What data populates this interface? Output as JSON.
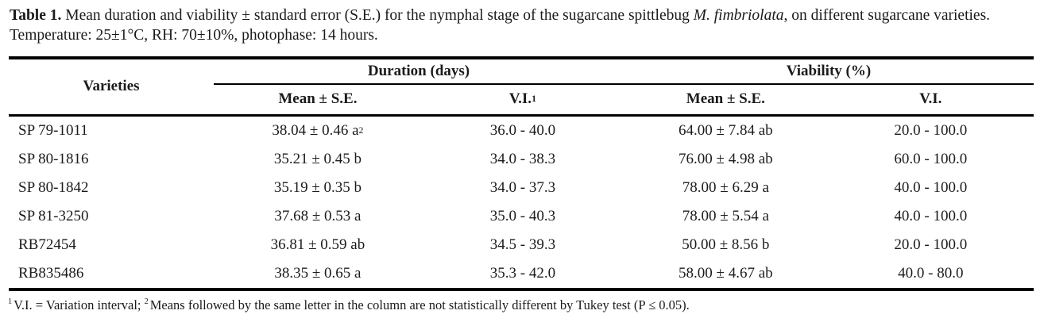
{
  "page": {
    "background_color": "#ffffff",
    "text_color": "#1b1b1b",
    "rule_color": "#000000"
  },
  "caption": {
    "label": "Table 1.",
    "text_before_species": " Mean duration and viability ± standard error (S.E.) for the nymphal stage of the sugarcane spittlebug ",
    "species": "M. fimbriolata",
    "text_after_species": ", on different sugarcane varieties. Temperature: 25±1°C, RH: 70±10%, photophase: 14 hours."
  },
  "table": {
    "header": {
      "varieties": "Varieties",
      "duration_group": "Duration (days)",
      "viability_group": "Viability (%)",
      "dur_mean": "Mean ± S.E.",
      "dur_vi": "V.I.",
      "dur_vi_sup": "1",
      "via_mean": "Mean ± S.E.",
      "via_vi": "V.I."
    },
    "rows": [
      {
        "variety": "SP 79-1011",
        "dur_mean": "38.04 ± 0.46 a",
        "dur_mean_sup": "2",
        "dur_vi": "36.0 - 40.0",
        "via_mean": "64.00 ± 7.84 ab",
        "via_vi": "20.0 - 100.0"
      },
      {
        "variety": "SP 80-1816",
        "dur_mean": "35.21 ± 0.45 b",
        "dur_vi": "34.0 - 38.3",
        "via_mean": "76.00 ± 4.98 ab",
        "via_vi": "60.0 - 100.0"
      },
      {
        "variety": "SP 80-1842",
        "dur_mean": "35.19 ± 0.35 b",
        "dur_vi": "34.0 - 37.3",
        "via_mean": "78.00 ± 6.29 a",
        "via_vi": "40.0 - 100.0"
      },
      {
        "variety": "SP 81-3250",
        "dur_mean": "37.68 ± 0.53 a",
        "dur_vi": "35.0 - 40.3",
        "via_mean": "78.00 ± 5.54 a",
        "via_vi": "40.0 - 100.0"
      },
      {
        "variety": "RB72454",
        "dur_mean": "36.81 ± 0.59 ab",
        "dur_vi": "34.5 - 39.3",
        "via_mean": "50.00 ± 8.56 b",
        "via_vi": "20.0 - 100.0"
      },
      {
        "variety": "RB835486",
        "dur_mean": "38.35 ± 0.65 a",
        "dur_vi": "35.3 - 42.0",
        "via_mean": "58.00 ± 4.67 ab",
        "via_vi": "40.0 - 80.0"
      }
    ]
  },
  "footnote": {
    "sup1": "1",
    "part1": "V.I. = Variation interval; ",
    "sup2": "2",
    "part2": "Means followed by the same letter in the column are not statistically different by Tukey test (P ≤ 0.05)."
  }
}
